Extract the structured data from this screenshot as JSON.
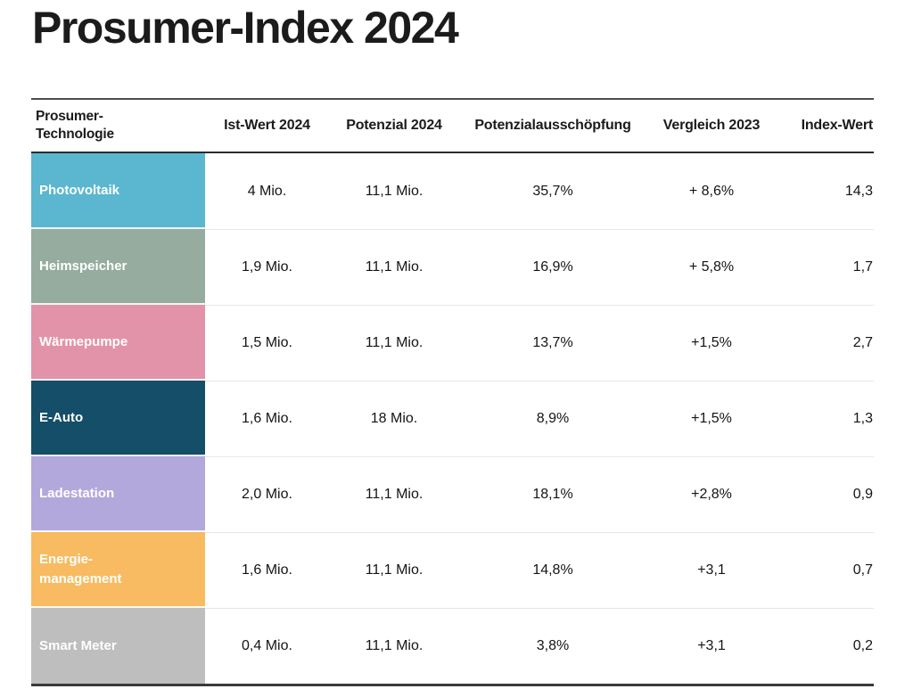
{
  "title": "Prosumer-Index 2024",
  "header": {
    "col_technologie": "Prosumer-\nTechnologie",
    "col_ist": "Ist-Wert 2024",
    "col_potenzial": "Potenzial 2024",
    "col_ausschoepfung": "Potenzialausschöpfung",
    "col_vergleich": "Vergleich 2023",
    "col_index": "Index-Wert"
  },
  "chart_data": {
    "type": "table",
    "title": "Prosumer-Index 2024",
    "columns": [
      "Prosumer-Technologie",
      "Ist-Wert 2024",
      "Potenzial 2024",
      "Potenzialausschöpfung",
      "Vergleich 2023",
      "Index-Wert"
    ],
    "rows": [
      {
        "label": "Photovoltaik",
        "color": "#5ab7cf",
        "ist": "4 Mio.",
        "potenzial": "11,1 Mio.",
        "ausschoepfung": "35,7%",
        "vergleich": "+ 8,6%",
        "index": "14,3"
      },
      {
        "label": "Heimspeicher",
        "color": "#95ac9f",
        "ist": "1,9 Mio.",
        "potenzial": "11,1 Mio.",
        "ausschoepfung": "16,9%",
        "vergleich": "+ 5,8%",
        "index": "1,7"
      },
      {
        "label": "Wärmepumpe",
        "color": "#e293a9",
        "ist": "1,5 Mio.",
        "potenzial": "11,1 Mio.",
        "ausschoepfung": "13,7%",
        "vergleich": "+1,5%",
        "index": "2,7"
      },
      {
        "label": "E-Auto",
        "color": "#144e68",
        "ist": "1,6 Mio.",
        "potenzial": "18 Mio.",
        "ausschoepfung": "8,9%",
        "vergleich": "+1,5%",
        "index": "1,3"
      },
      {
        "label": "Ladestation",
        "color": "#b3a8dc",
        "ist": "2,0 Mio.",
        "potenzial": "11,1 Mio.",
        "ausschoepfung": "18,1%",
        "vergleich": "+2,8%",
        "index": "0,9"
      },
      {
        "label": "Energie-\nmanagement",
        "color": "#f8bb61",
        "ist": "1,6 Mio.",
        "potenzial": "11,1 Mio.",
        "ausschoepfung": "14,8%",
        "vergleich": "+3,1",
        "index": "0,7"
      },
      {
        "label": "Smart Meter",
        "color": "#bebebe",
        "ist": "0,4 Mio.",
        "potenzial": "11,1 Mio.",
        "ausschoepfung": "3,8%",
        "vergleich": "+3,1",
        "index": "0,2"
      }
    ]
  }
}
